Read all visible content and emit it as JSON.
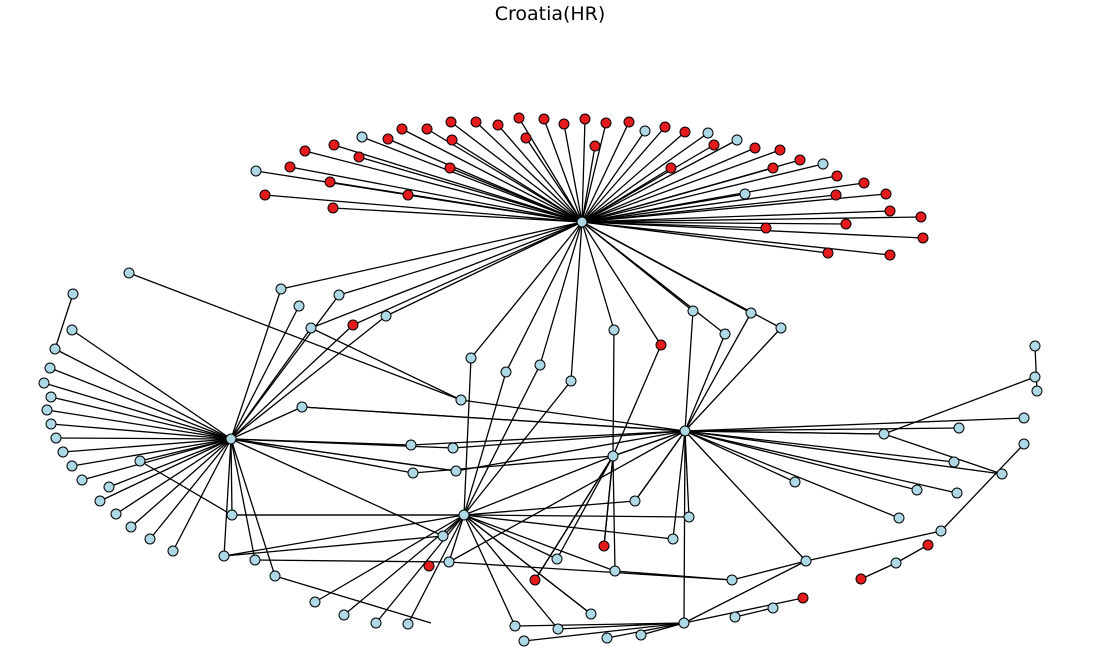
{
  "title": "Croatia(HR)",
  "colors": {
    "node_blue": "#add8e6",
    "node_red": "#e41a1c",
    "edge": "#000000",
    "node_border": "#000000"
  }
}
